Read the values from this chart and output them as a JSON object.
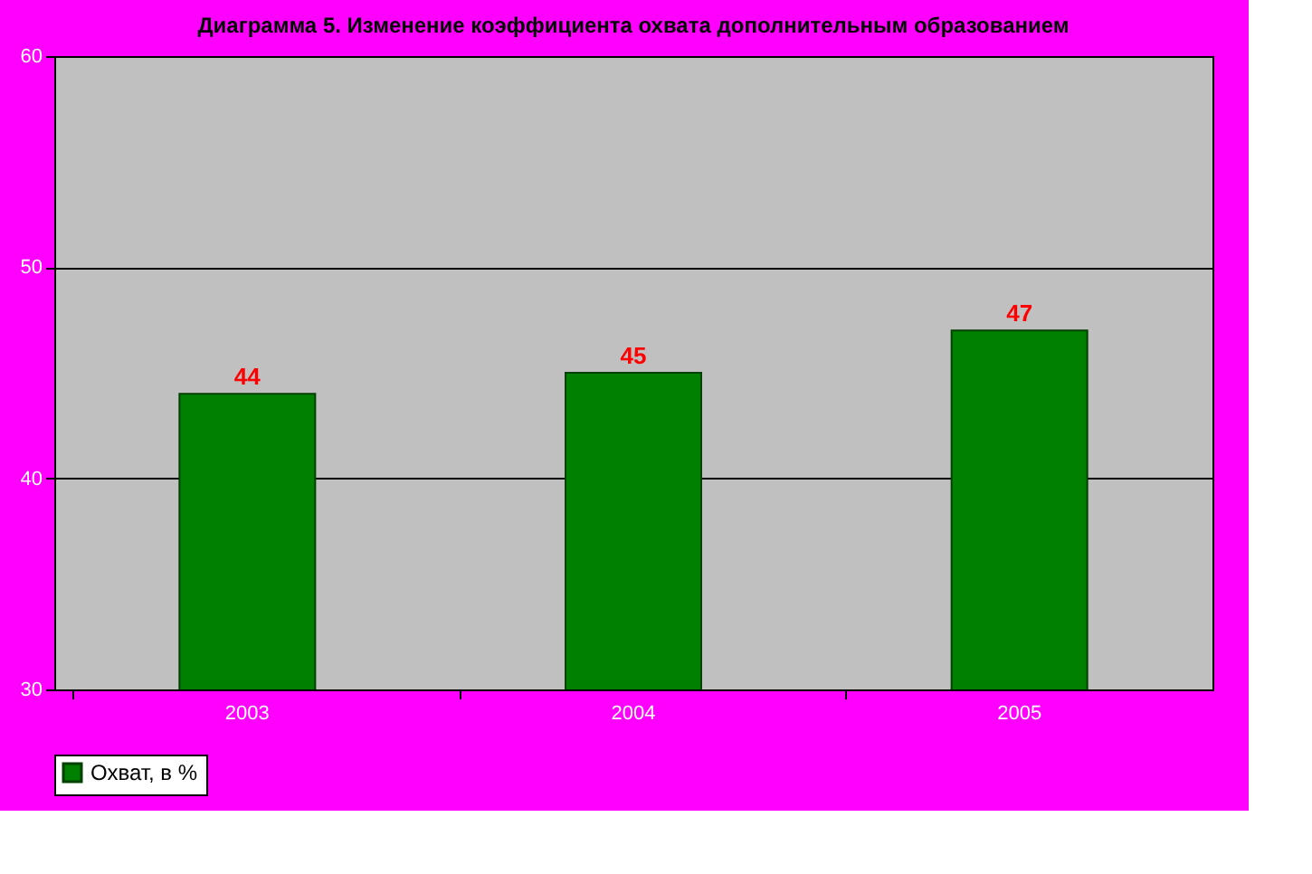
{
  "chart_data": {
    "type": "bar",
    "title": "Диаграмма 5. Изменение коэффициента охвата дополнительным образованием",
    "categories": [
      "2003",
      "2004",
      "2005"
    ],
    "series": [
      {
        "name": "Охват, в %",
        "color": "#008000",
        "values": [
          44,
          45,
          47
        ]
      }
    ],
    "ylim": [
      30,
      60
    ],
    "yticks": [
      30,
      40,
      50,
      60
    ],
    "grid": "y",
    "legend": "bottom",
    "data_labels": true
  }
}
